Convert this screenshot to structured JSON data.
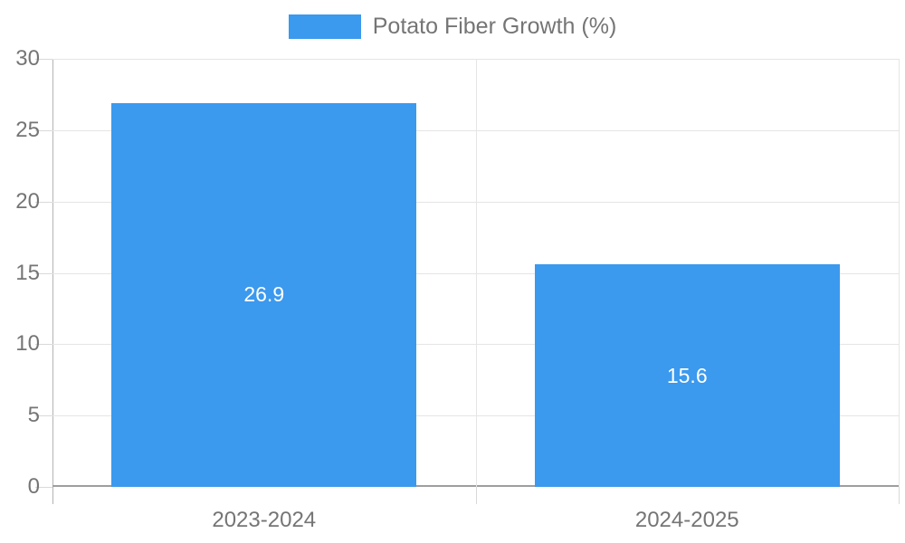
{
  "chart_data": {
    "type": "bar",
    "title": "",
    "legend": "Potato Fiber Growth (%)",
    "legend_position": "top-center",
    "categories": [
      "2023-2024",
      "2024-2025"
    ],
    "series": [
      {
        "name": "Potato Fiber Growth (%)",
        "values": [
          26.9,
          15.6
        ]
      }
    ],
    "value_labels": [
      "26.9",
      "15.6"
    ],
    "xlabel": "",
    "ylabel": "",
    "ylim": [
      0,
      30
    ],
    "yticks": [
      0,
      5,
      10,
      15,
      20,
      25,
      30
    ],
    "grid": true,
    "colors": {
      "bar": "#3b99ee",
      "bar_label": "#ffffff",
      "axis_text": "#757575",
      "gridline": "#e5e5e5",
      "axis_line": "#b3b3b3",
      "zero_line": "#9e9e9e",
      "background": "#ffffff"
    }
  }
}
